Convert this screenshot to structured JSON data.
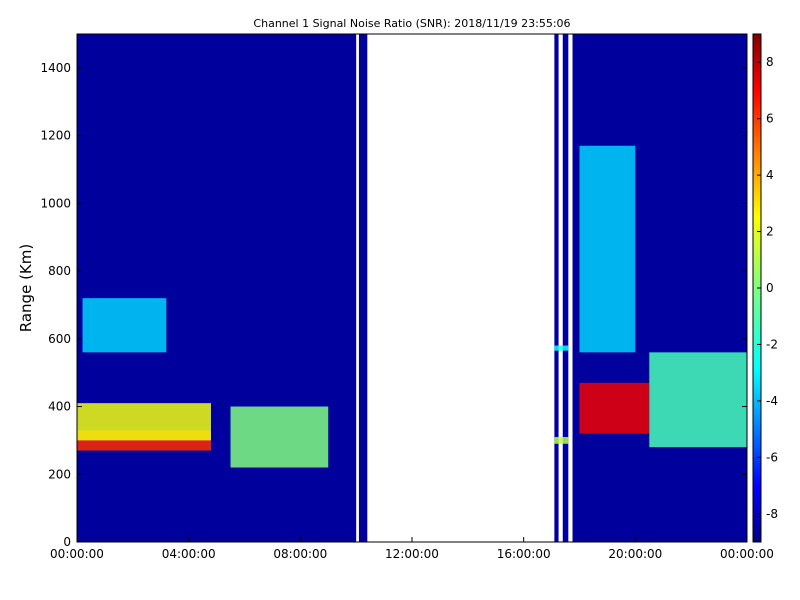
{
  "chart_data": {
    "type": "heatmap",
    "title": "Channel 1 Signal Noise Ratio (SNR): 2018/11/19 23:55:06",
    "xlabel": "",
    "ylabel": "Range (Km)",
    "x_ticks": [
      "00:00:00",
      "04:00:00",
      "08:00:00",
      "12:00:00",
      "16:00:00",
      "20:00:00",
      "00:00:00"
    ],
    "x_range_hours": [
      0,
      24
    ],
    "y_range": [
      0,
      1500
    ],
    "y_ticks": [
      "0",
      "200",
      "400",
      "600",
      "800",
      "1000",
      "1200",
      "1400"
    ],
    "colorbar": {
      "range": [
        -9,
        9
      ],
      "ticks": [
        "-8",
        "-6",
        "-4",
        "-2",
        "0",
        "2",
        "4",
        "6",
        "8"
      ],
      "colormap": "jet"
    },
    "background_value": -8.5,
    "data_columns_hours": [
      [
        0,
        10
      ],
      [
        10.1,
        10.4
      ],
      [
        17.1,
        17.25
      ],
      [
        17.4,
        17.6
      ],
      [
        17.75,
        24
      ]
    ],
    "features": [
      {
        "name": "",
        "hours": [
          0,
          4.8
        ],
        "range_km": [
          270,
          330
        ],
        "snr": 6
      },
      {
        "name": "",
        "hours": [
          0,
          4.8
        ],
        "range_km": [
          300,
          410
        ],
        "snr": 2
      },
      {
        "name": "",
        "hours": [
          0.2,
          3.2
        ],
        "range_km": [
          560,
          720
        ],
        "snr": -3
      },
      {
        "name": "",
        "hours": [
          5.5,
          9
        ],
        "range_km": [
          220,
          400
        ],
        "snr": 0
      },
      {
        "name": "",
        "hours": [
          17.1,
          17.6
        ],
        "range_km": [
          290,
          310
        ],
        "snr": 1
      },
      {
        "name": "",
        "hours": [
          17.1,
          17.6
        ],
        "range_km": [
          565,
          580
        ],
        "snr": -2
      },
      {
        "name": "",
        "hours": [
          18,
          20.5
        ],
        "range_km": [
          320,
          470
        ],
        "snr": 7
      },
      {
        "name": "",
        "hours": [
          20.5,
          24
        ],
        "range_km": [
          280,
          560
        ],
        "snr": -1
      },
      {
        "name": "",
        "hours": [
          18,
          20
        ],
        "range_km": [
          560,
          1170
        ],
        "snr": -3
      }
    ]
  }
}
